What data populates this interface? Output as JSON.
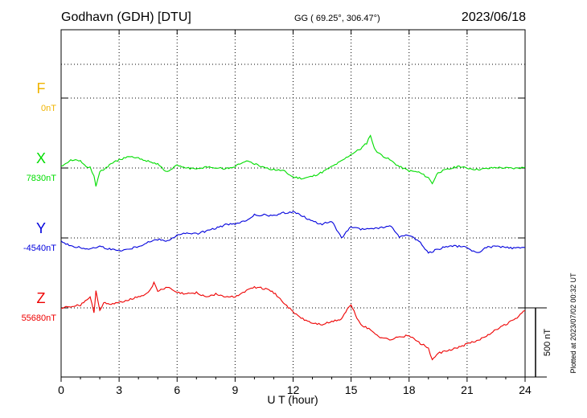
{
  "header": {
    "station": "Godhavn (GDH)  [DTU]",
    "coords": "GG ( 69.25°, 306.47°)",
    "date": "2023/06/18"
  },
  "footer": {
    "plotted": "Plotted at 2023/07/02 00:32 UT"
  },
  "colors": {
    "F": "#f0b400",
    "X": "#00dd00",
    "Y": "#0000dd",
    "Z": "#ee0000",
    "grid": "#000000"
  },
  "chart_data": {
    "type": "line",
    "xlabel": "U T (hour)",
    "xlim": [
      0,
      24
    ],
    "xticks": [
      "0",
      "3",
      "6",
      "9",
      "12",
      "15",
      "18",
      "21",
      "24"
    ],
    "scale_label": "500 nT",
    "scale_nT": 500,
    "series": [
      {
        "name": "F",
        "baseline_label": "0nT",
        "baseline": 0,
        "x": [],
        "values": []
      },
      {
        "name": "X",
        "baseline_label": "7830nT",
        "baseline": 7830,
        "x": [
          0,
          0.5,
          1,
          1.3,
          1.5,
          1.7,
          1.8,
          2,
          2.5,
          3,
          3.5,
          4,
          4.5,
          5,
          5.3,
          5.5,
          6,
          6.5,
          7,
          7.5,
          8,
          8.5,
          9,
          9.5,
          10,
          10.5,
          11,
          11.5,
          12,
          12.5,
          13,
          13.5,
          14,
          14.5,
          15,
          15.5,
          15.8,
          16,
          16.2,
          16.5,
          17,
          17.5,
          18,
          18.5,
          19,
          19.2,
          19.5,
          20,
          20.5,
          21,
          21.5,
          22,
          22.5,
          23,
          23.5,
          24
        ],
        "values": [
          7845,
          7890,
          7880,
          7840,
          7835,
          7770,
          7700,
          7800,
          7850,
          7890,
          7910,
          7900,
          7880,
          7860,
          7820,
          7800,
          7850,
          7830,
          7820,
          7840,
          7830,
          7825,
          7840,
          7880,
          7860,
          7830,
          7820,
          7810,
          7765,
          7755,
          7770,
          7800,
          7840,
          7880,
          7930,
          7970,
          8010,
          8070,
          7970,
          7930,
          7890,
          7840,
          7810,
          7800,
          7760,
          7720,
          7800,
          7820,
          7840,
          7830,
          7820,
          7825,
          7835,
          7830,
          7828,
          7835
        ]
      },
      {
        "name": "Y",
        "baseline_label": "-4540nT",
        "baseline": -4540,
        "x": [
          0,
          0.5,
          1,
          1.5,
          2,
          2.5,
          3,
          3.5,
          4,
          4.5,
          5,
          5.5,
          6,
          6.5,
          7,
          7.5,
          8,
          8.5,
          9,
          9.5,
          10,
          10.5,
          11,
          11.5,
          12,
          12.5,
          13,
          13.5,
          14,
          14.5,
          15,
          15.5,
          16,
          16.5,
          17,
          17.5,
          18,
          18.5,
          19,
          19.5,
          20,
          20.5,
          21,
          21.5,
          22,
          22.5,
          23,
          23.5,
          24
        ],
        "values": [
          -4560,
          -4600,
          -4610,
          -4620,
          -4600,
          -4620,
          -4630,
          -4620,
          -4600,
          -4570,
          -4550,
          -4560,
          -4520,
          -4505,
          -4510,
          -4490,
          -4470,
          -4445,
          -4440,
          -4420,
          -4375,
          -4375,
          -4380,
          -4360,
          -4350,
          -4380,
          -4420,
          -4440,
          -4420,
          -4540,
          -4460,
          -4480,
          -4470,
          -4470,
          -4450,
          -4530,
          -4520,
          -4560,
          -4650,
          -4620,
          -4600,
          -4600,
          -4610,
          -4650,
          -4610,
          -4600,
          -4610,
          -4615,
          -4610
        ]
      },
      {
        "name": "Z",
        "baseline_label": "55680nT",
        "baseline": 55680,
        "x": [
          0,
          0.5,
          1,
          1.5,
          1.7,
          1.8,
          2,
          2.2,
          2.5,
          3,
          3.5,
          4,
          4.5,
          4.8,
          5,
          5.5,
          6,
          6.5,
          7,
          7.5,
          8,
          8.5,
          9,
          9.5,
          10,
          10.5,
          11,
          11.5,
          12,
          12.5,
          13,
          13.5,
          14,
          14.5,
          14.8,
          15,
          15.3,
          15.5,
          16,
          16.5,
          17,
          17.5,
          18,
          18.5,
          19,
          19.2,
          19.5,
          20,
          20.5,
          21,
          21.5,
          22,
          22.5,
          23,
          23.5,
          24
        ],
        "values": [
          55680,
          55690,
          55700,
          55760,
          55640,
          55810,
          55660,
          55720,
          55700,
          55720,
          55740,
          55760,
          55790,
          55860,
          55800,
          55830,
          55790,
          55780,
          55790,
          55760,
          55780,
          55760,
          55760,
          55800,
          55830,
          55820,
          55790,
          55720,
          55650,
          55600,
          55570,
          55560,
          55580,
          55600,
          55670,
          55700,
          55610,
          55560,
          55520,
          55470,
          55450,
          55470,
          55480,
          55430,
          55390,
          55300,
          55350,
          55370,
          55390,
          55420,
          55440,
          55480,
          55520,
          55560,
          55600,
          55660
        ]
      }
    ]
  }
}
